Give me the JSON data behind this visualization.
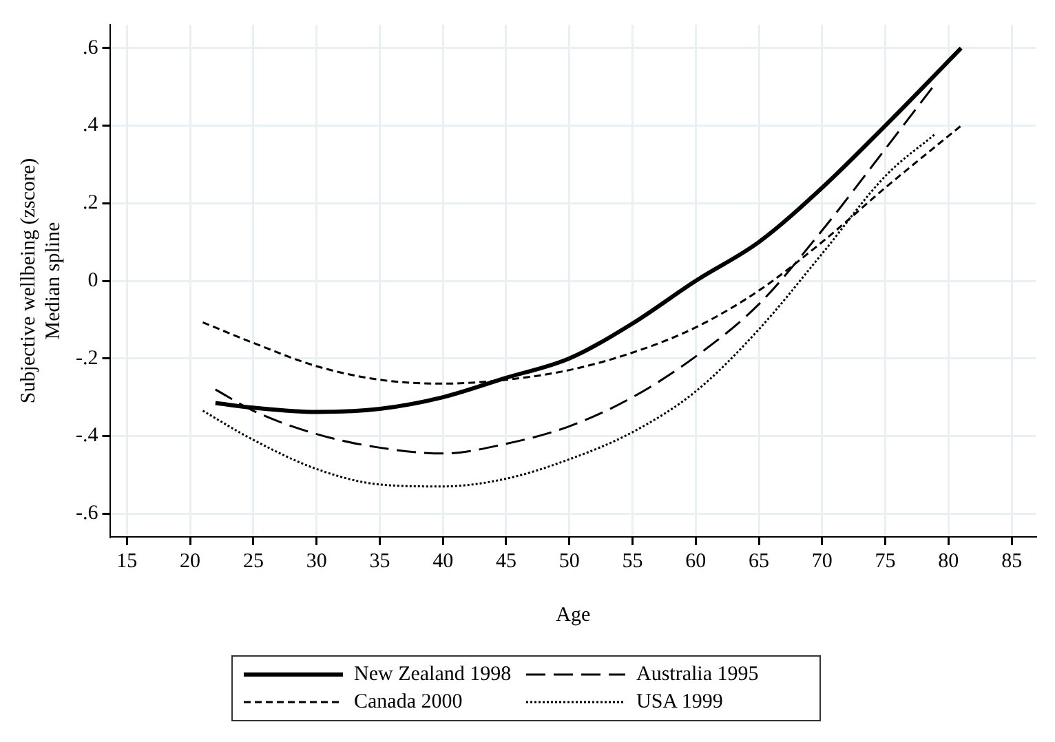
{
  "chart_data": {
    "type": "line",
    "xlabel": "Age",
    "ylabel": "Subjective wellbeing (zscore)\nMedian spline",
    "xlim": [
      13.7,
      86.9
    ],
    "ylim": [
      -0.66,
      0.66
    ],
    "xticks": [
      15,
      20,
      25,
      30,
      35,
      40,
      45,
      50,
      55,
      60,
      65,
      70,
      75,
      80,
      85
    ],
    "yticks": [
      {
        "value": -0.6,
        "label": "-.6"
      },
      {
        "value": -0.4,
        "label": "-.4"
      },
      {
        "value": -0.2,
        "label": "-.2"
      },
      {
        "value": 0,
        "label": "0"
      },
      {
        "value": 0.2,
        "label": ".2"
      },
      {
        "value": 0.4,
        "label": ".4"
      },
      {
        "value": 0.6,
        "label": ".6"
      }
    ],
    "grid": true,
    "legend": "bottom",
    "marker": "none",
    "series": [
      {
        "name": "New Zealand 1998",
        "color": "#000000",
        "line_style": "solid",
        "x": [
          22,
          25,
          30,
          35,
          40,
          45,
          50,
          55,
          60,
          65,
          70,
          75,
          81
        ],
        "values": [
          -0.315,
          -0.327,
          -0.338,
          -0.33,
          -0.3,
          -0.25,
          -0.2,
          -0.11,
          0.0,
          0.1,
          0.24,
          0.4,
          0.6
        ]
      },
      {
        "name": "Australia 1995",
        "color": "#000000",
        "line_style": "dashed",
        "x": [
          22,
          25,
          30,
          35,
          40,
          45,
          50,
          55,
          60,
          65,
          70,
          75,
          79
        ],
        "values": [
          -0.28,
          -0.335,
          -0.395,
          -0.43,
          -0.445,
          -0.42,
          -0.375,
          -0.3,
          -0.195,
          -0.06,
          0.13,
          0.34,
          0.51
        ]
      },
      {
        "name": "Canada 2000",
        "color": "#000000",
        "line_style": "dashed",
        "x": [
          21,
          25,
          30,
          35,
          40,
          45,
          50,
          55,
          60,
          65,
          70,
          75,
          81
        ],
        "values": [
          -0.107,
          -0.16,
          -0.22,
          -0.255,
          -0.265,
          -0.255,
          -0.23,
          -0.185,
          -0.12,
          -0.025,
          0.1,
          0.24,
          0.4
        ]
      },
      {
        "name": "USA 1999",
        "color": "#000000",
        "line_style": "dotted",
        "x": [
          21,
          25,
          30,
          35,
          40,
          45,
          50,
          55,
          60,
          65,
          70,
          75,
          79
        ],
        "values": [
          -0.335,
          -0.41,
          -0.485,
          -0.525,
          -0.53,
          -0.51,
          -0.46,
          -0.39,
          -0.285,
          -0.125,
          0.07,
          0.27,
          0.38
        ]
      }
    ]
  }
}
